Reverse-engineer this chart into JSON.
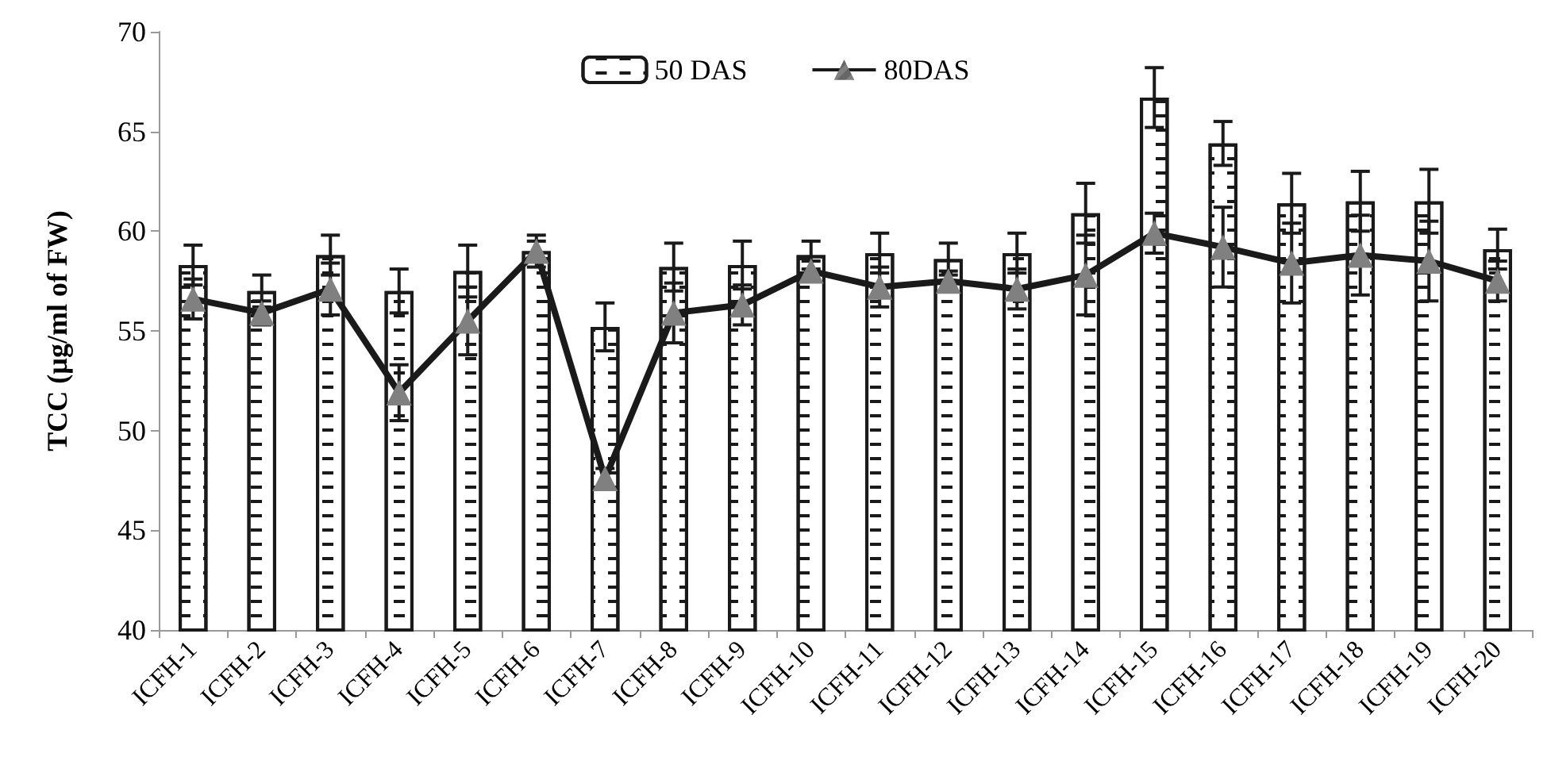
{
  "chart_data": {
    "type": "bar",
    "ylabel": "TCC (µg/ml of FW)",
    "categories": [
      "ICFH-1",
      "ICFH-2",
      "ICFH-3",
      "ICFH-4",
      "ICFH-5",
      "ICFH-6",
      "ICFH-7",
      "ICFH-8",
      "ICFH-9",
      "ICFH-10",
      "ICFH-11",
      "ICFH-12",
      "ICFH-13",
      "ICFH-14",
      "ICFH-15",
      "ICFH-16",
      "ICFH-17",
      "ICFH-18",
      "ICFH-19",
      "ICFH-20"
    ],
    "series": [
      {
        "name": "50 DAS",
        "color": "#ffffff",
        "values": [
          58.3,
          57.0,
          58.8,
          57.0,
          58.0,
          59.0,
          55.2,
          58.2,
          58.3,
          58.8,
          58.9,
          58.6,
          58.9,
          60.9,
          66.7,
          64.4,
          61.4,
          61.5,
          61.5,
          59.1
        ],
        "errors": [
          1.0,
          0.8,
          1.0,
          1.1,
          1.3,
          0.8,
          1.2,
          1.2,
          1.2,
          0.7,
          1.0,
          0.8,
          1.0,
          1.5,
          1.5,
          1.1,
          1.5,
          1.5,
          1.6,
          1.0
        ]
      },
      {
        "name": "80DAS",
        "type": "line",
        "color": "#1a1a1a",
        "marker": "triangle",
        "values": [
          56.6,
          55.9,
          57.1,
          51.9,
          55.5,
          59.0,
          47.6,
          55.9,
          56.3,
          58.0,
          57.2,
          57.5,
          57.1,
          57.8,
          59.9,
          59.2,
          58.4,
          58.8,
          58.5,
          57.5
        ],
        "errors": [
          1.0,
          0.6,
          1.3,
          1.4,
          1.7,
          0.5,
          0.5,
          1.5,
          1.0,
          0.5,
          1.0,
          0.5,
          1.0,
          2.0,
          1.0,
          2.0,
          2.0,
          2.0,
          2.0,
          1.0
        ]
      }
    ],
    "ylim": [
      40,
      70
    ],
    "yticks": [
      40,
      45,
      50,
      55,
      60,
      65,
      70
    ],
    "grid": false,
    "legend": "top"
  }
}
